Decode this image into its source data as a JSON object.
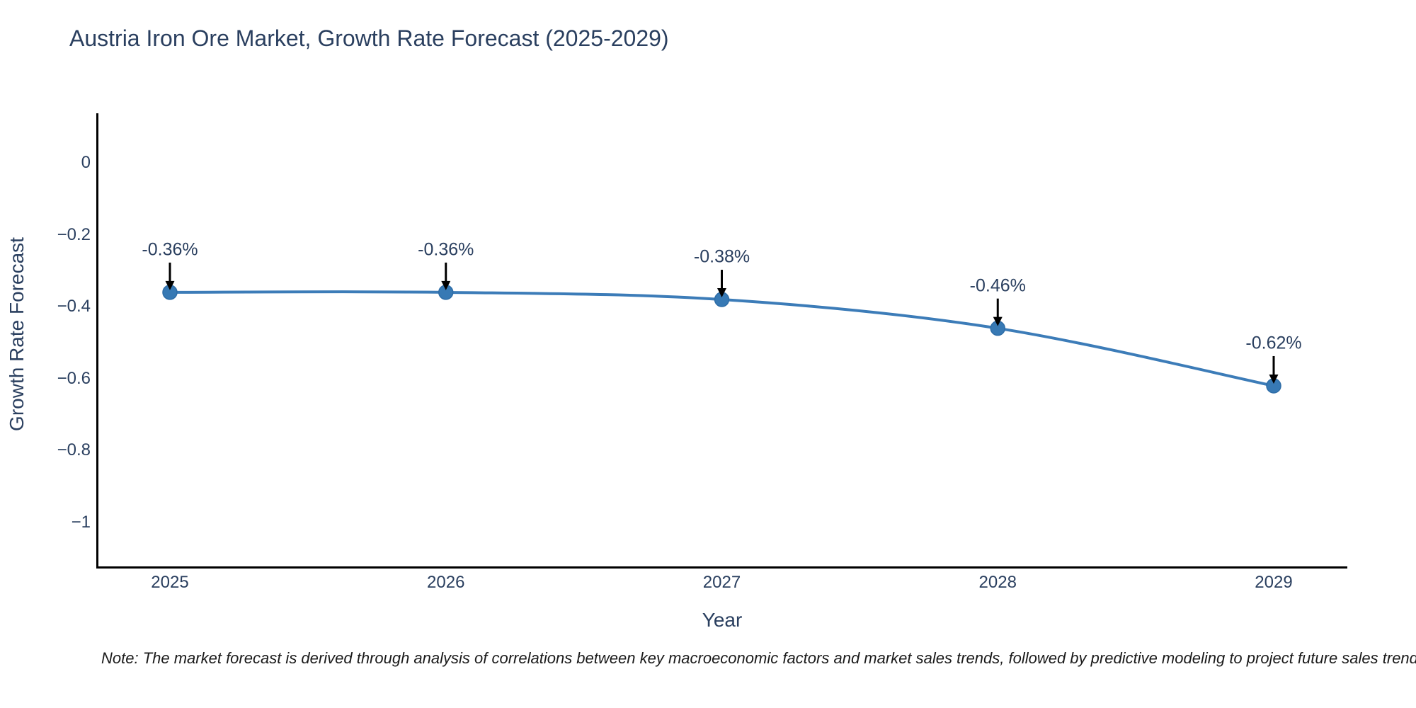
{
  "note": "Note: The market forecast is derived through analysis of correlations between key macroeconomic factors and market sales trends, followed by predictive modeling to project future sales trends.",
  "chart_data": {
    "type": "line",
    "title": "Austria Iron Ore Market, Growth Rate Forecast (2025-2029)",
    "xlabel": "Year",
    "ylabel": "Growth Rate Forecast",
    "x": [
      2025,
      2026,
      2027,
      2028,
      2029
    ],
    "values": [
      -0.36,
      -0.36,
      -0.38,
      -0.46,
      -0.62
    ],
    "point_labels": [
      "-0.36%",
      "-0.36%",
      "-0.38%",
      "-0.46%",
      "-0.62%"
    ],
    "x_tick_labels": [
      "2025",
      "2026",
      "2027",
      "2028",
      "2029"
    ],
    "y_ticks": [
      0,
      -0.2,
      -0.4,
      -0.6,
      -0.8,
      -1
    ],
    "y_tick_labels": [
      "0",
      "−0.2",
      "−0.4",
      "−0.6",
      "−0.8",
      "−1"
    ],
    "xlim": [
      2024.74,
      2029.27
    ],
    "ylim": [
      -1.13,
      0.14
    ],
    "grid": false,
    "legend": null,
    "line_shape": "spline",
    "line_color": "#3c7cb8",
    "marker_color": "#3779b4",
    "marker_edge_color": "#2e6da7",
    "axis_color": "#000000",
    "text_color": "#2a3f5f",
    "annotation_arrow_color": "#000000"
  }
}
